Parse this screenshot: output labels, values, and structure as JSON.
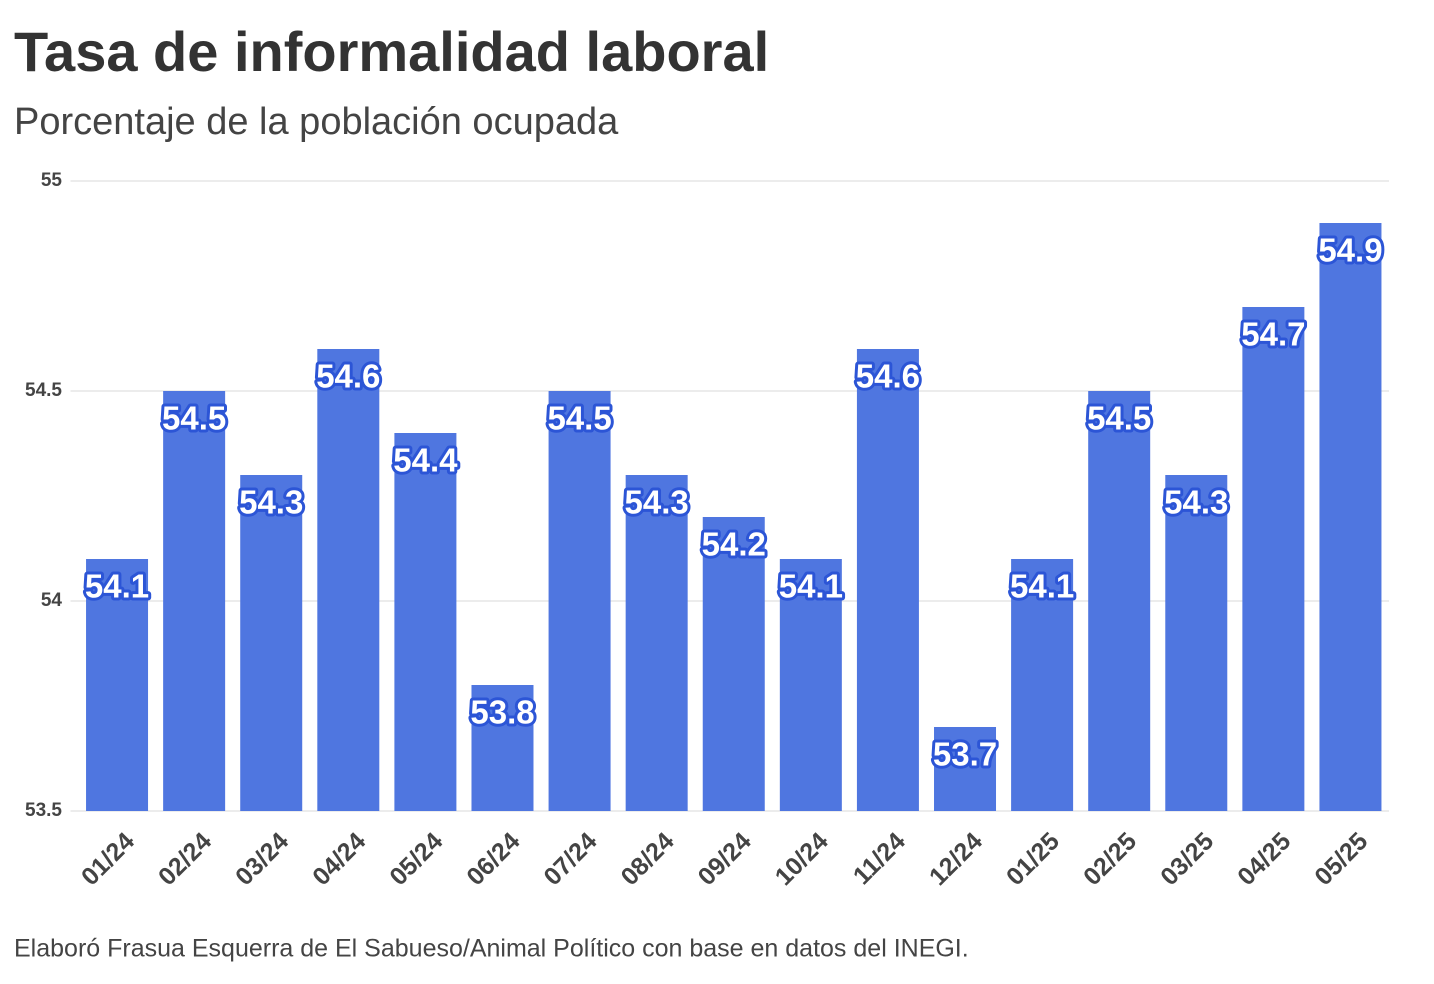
{
  "chart_data": {
    "type": "bar",
    "title": "Tasa de informalidad laboral",
    "subtitle": "Porcentaje de la población ocupada",
    "source": "Elaboró Frasua Esquerra de El Sabueso/Animal Político con base en datos del INEGI.",
    "categories": [
      "01/24",
      "02/24",
      "03/24",
      "04/24",
      "05/24",
      "06/24",
      "07/24",
      "08/24",
      "09/24",
      "10/24",
      "11/24",
      "12/24",
      "01/25",
      "02/25",
      "03/25",
      "04/25",
      "05/25"
    ],
    "values": [
      54.1,
      54.5,
      54.3,
      54.6,
      54.4,
      53.8,
      54.5,
      54.3,
      54.2,
      54.1,
      54.6,
      53.7,
      54.1,
      54.5,
      54.3,
      54.7,
      54.9
    ],
    "color": "#4f76e0",
    "ylim": [
      53.5,
      55
    ],
    "yticks": [
      53.5,
      54,
      54.5,
      55
    ],
    "grid": true
  }
}
